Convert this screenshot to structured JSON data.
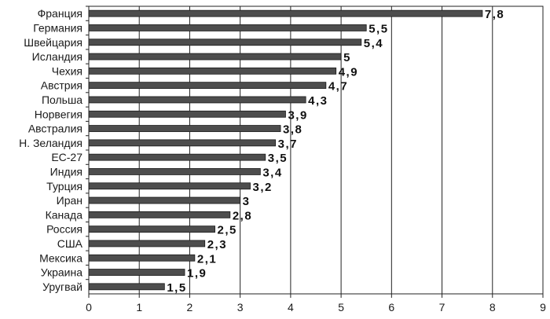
{
  "chart_data": {
    "type": "bar",
    "orientation": "horizontal",
    "categories": [
      "Франция",
      "Германия",
      "Швейцария",
      "Исландия",
      "Чехия",
      "Австрия",
      "Польша",
      "Норвегия",
      "Австралия",
      "Н. Зеландия",
      "ЕС-27",
      "Индия",
      "Турция",
      "Иран",
      "Канада",
      "Россия",
      "США",
      "Мексика",
      "Украина",
      "Уругвай"
    ],
    "values": [
      7.8,
      5.5,
      5.4,
      5,
      4.9,
      4.7,
      4.3,
      3.9,
      3.8,
      3.7,
      3.5,
      3.4,
      3.2,
      3,
      2.8,
      2.5,
      2.3,
      2.1,
      1.9,
      1.5
    ],
    "value_labels": [
      "7,8",
      "5,5",
      "5,4",
      "5",
      "4,9",
      "4,7",
      "4,3",
      "3,9",
      "3,8",
      "3,7",
      "3,5",
      "3,4",
      "3,2",
      "3",
      "2,8",
      "2,5",
      "2,3",
      "2,1",
      "1,9",
      "1,5"
    ],
    "xticks": [
      "0",
      "1",
      "2",
      "3",
      "4",
      "5",
      "6",
      "7",
      "8",
      "9"
    ],
    "xlim": [
      0,
      9
    ],
    "grid": "vertical",
    "title": "",
    "xlabel": "",
    "ylabel": "",
    "colors": {
      "bar": "#4d4d4d",
      "grid": "#222222"
    }
  }
}
